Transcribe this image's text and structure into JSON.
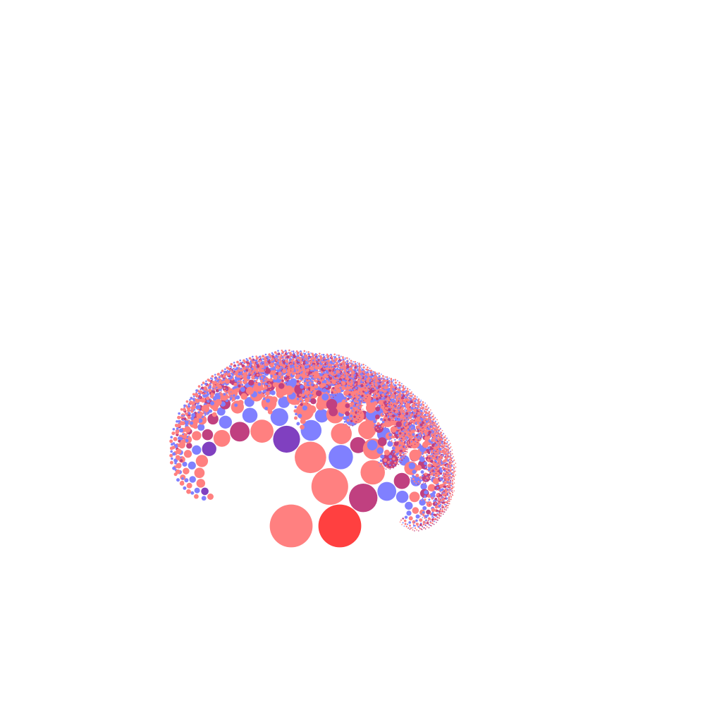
{
  "artwork": {
    "kind": "circle-fractal-tree",
    "palette": {
      "root": "#ff4040",
      "salmon": "#ff8080",
      "periwinkle": "#8080ff",
      "violet": "#8040c0",
      "magenta": "#c04080",
      "background": "#ffffff"
    },
    "branching": {
      "depth": 12,
      "left_scale": 0.86,
      "right_scale": 0.86,
      "left_turn_deg": -35,
      "right_turn_deg": 58
    },
    "color_rules": {
      "left_child": "salmon",
      "right_child": "periwinkle",
      "mixed": [
        "violet",
        "magenta"
      ]
    }
  }
}
